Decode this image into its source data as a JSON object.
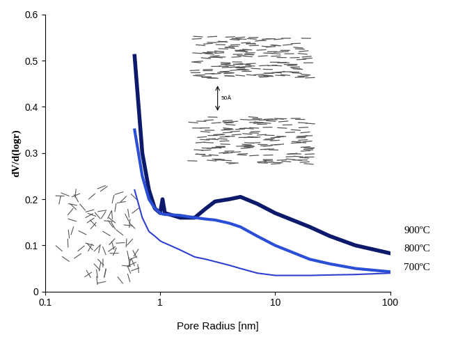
{
  "chart_data": {
    "type": "line",
    "x_label": "Pore Radius [nm]",
    "y_label": "dV/d(logr)",
    "log": "x",
    "grid": false,
    "xlim": [
      0.1,
      100
    ],
    "xticks": [
      0.1,
      1,
      10,
      100
    ],
    "ylim": [
      0,
      0.6
    ],
    "yticks": [
      0,
      0.1,
      0.2,
      0.3,
      0.4,
      0.5,
      0.6
    ],
    "annotations": [
      "50Å"
    ],
    "x": [
      0.6,
      0.7,
      0.8,
      0.9,
      1.0,
      1.05,
      1.1,
      1.5,
      2,
      2.5,
      3,
      4,
      5,
      7,
      10,
      20,
      30,
      50,
      100
    ],
    "series": [
      {
        "name": "900ºC",
        "color": "#0d1a6b",
        "values": [
          0.51,
          0.3,
          0.22,
          0.18,
          0.17,
          0.2,
          0.17,
          0.16,
          0.16,
          0.18,
          0.195,
          0.2,
          0.205,
          0.19,
          0.17,
          0.14,
          0.12,
          0.1,
          0.083
        ]
      },
      {
        "name": "800ºC",
        "color": "#2a4fd6",
        "values": [
          0.35,
          0.25,
          0.2,
          0.18,
          0.17,
          0.168,
          0.167,
          0.165,
          0.16,
          0.157,
          0.155,
          0.148,
          0.14,
          0.12,
          0.1,
          0.07,
          0.06,
          0.05,
          0.043
        ]
      },
      {
        "name": "700ºC",
        "color": "#2f3fd0",
        "values": [
          0.22,
          0.16,
          0.13,
          0.12,
          0.11,
          0.107,
          0.105,
          0.09,
          0.075,
          0.07,
          0.065,
          0.057,
          0.05,
          0.04,
          0.035,
          0.035,
          0.036,
          0.037,
          0.04
        ]
      }
    ]
  }
}
